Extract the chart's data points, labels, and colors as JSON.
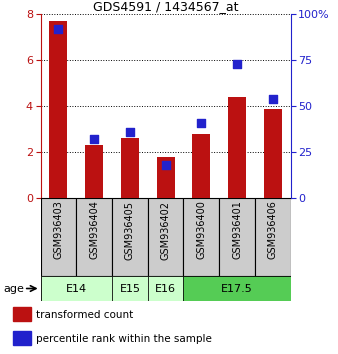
{
  "title": "GDS4591 / 1434567_at",
  "samples": [
    "GSM936403",
    "GSM936404",
    "GSM936405",
    "GSM936402",
    "GSM936400",
    "GSM936401",
    "GSM936406"
  ],
  "transformed_count": [
    7.7,
    2.3,
    2.6,
    1.8,
    2.8,
    4.4,
    3.9
  ],
  "percentile_rank": [
    92,
    32,
    36,
    18,
    41,
    73,
    54
  ],
  "age_groups": [
    {
      "label": "E14",
      "start": 0,
      "end": 1,
      "color": "#ccffcc"
    },
    {
      "label": "E15",
      "start": 2,
      "end": 2,
      "color": "#ccffcc"
    },
    {
      "label": "E16",
      "start": 3,
      "end": 3,
      "color": "#ccffcc"
    },
    {
      "label": "E17.5",
      "start": 4,
      "end": 6,
      "color": "#55cc55"
    }
  ],
  "ylim_left": [
    0,
    8
  ],
  "ylim_right": [
    0,
    100
  ],
  "yticks_left": [
    0,
    2,
    4,
    6,
    8
  ],
  "yticks_right": [
    0,
    25,
    50,
    75,
    100
  ],
  "ytick_right_labels": [
    "0",
    "25",
    "50",
    "75",
    "100%"
  ],
  "bar_color": "#bb1111",
  "dot_color": "#2222cc",
  "bar_width": 0.5,
  "dot_size": 30,
  "age_label": "age",
  "sample_box_color": "#cccccc",
  "legend_items": [
    {
      "color": "#bb1111",
      "label": "transformed count"
    },
    {
      "color": "#2222cc",
      "label": "percentile rank within the sample"
    }
  ]
}
